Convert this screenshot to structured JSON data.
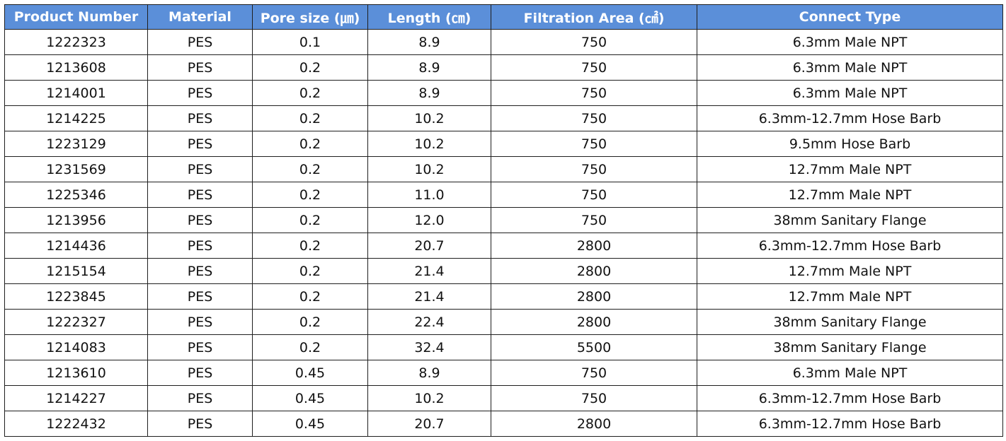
{
  "table": {
    "header_color": "#5b8fd9",
    "headers": [
      "Product Number",
      "Material",
      "Pore size (㎛)",
      "Length (㎝)",
      "Filtration Area (㎠)",
      "Connect Type"
    ],
    "rows": [
      [
        "1222323",
        "PES",
        "0.1",
        "8.9",
        "750",
        "6.3mm Male NPT"
      ],
      [
        "1213608",
        "PES",
        "0.2",
        "8.9",
        "750",
        "6.3mm Male NPT"
      ],
      [
        "1214001",
        "PES",
        "0.2",
        "8.9",
        "750",
        "6.3mm Male NPT"
      ],
      [
        "1214225",
        "PES",
        "0.2",
        "10.2",
        "750",
        "6.3mm-12.7mm Hose Barb"
      ],
      [
        "1223129",
        "PES",
        "0.2",
        "10.2",
        "750",
        "9.5mm Hose Barb"
      ],
      [
        "1231569",
        "PES",
        "0.2",
        "10.2",
        "750",
        "12.7mm Male NPT"
      ],
      [
        "1225346",
        "PES",
        "0.2",
        "11.0",
        "750",
        "12.7mm Male NPT"
      ],
      [
        "1213956",
        "PES",
        "0.2",
        "12.0",
        "750",
        "38mm Sanitary Flange"
      ],
      [
        "1214436",
        "PES",
        "0.2",
        "20.7",
        "2800",
        "6.3mm-12.7mm Hose Barb"
      ],
      [
        "1215154",
        "PES",
        "0.2",
        "21.4",
        "2800",
        "12.7mm Male NPT"
      ],
      [
        "1223845",
        "PES",
        "0.2",
        "21.4",
        "2800",
        "12.7mm Male NPT"
      ],
      [
        "1222327",
        "PES",
        "0.2",
        "22.4",
        "2800",
        "38mm Sanitary Flange"
      ],
      [
        "1214083",
        "PES",
        "0.2",
        "32.4",
        "5500",
        "38mm Sanitary Flange"
      ],
      [
        "1213610",
        "PES",
        "0.45",
        "8.9",
        "750",
        "6.3mm Male NPT"
      ],
      [
        "1214227",
        "PES",
        "0.45",
        "10.2",
        "750",
        "6.3mm-12.7mm Hose Barb"
      ],
      [
        "1222432",
        "PES",
        "0.45",
        "20.7",
        "2800",
        "6.3mm-12.7mm Hose Barb"
      ]
    ]
  }
}
